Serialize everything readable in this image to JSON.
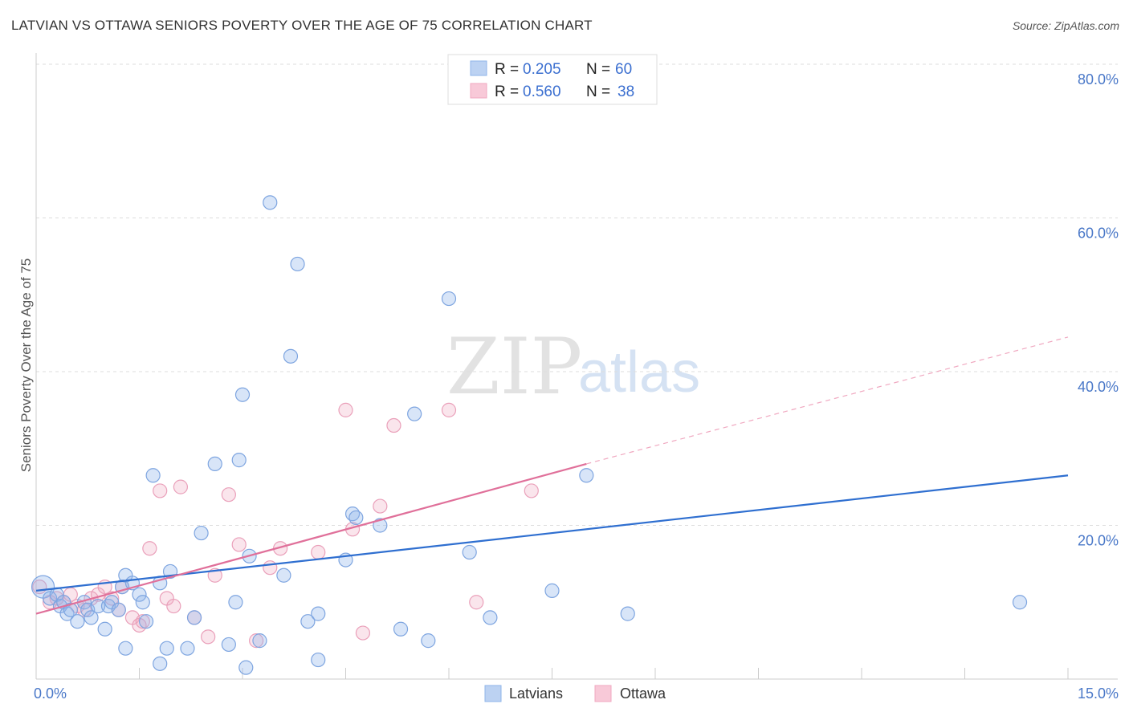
{
  "title": "LATVIAN VS OTTAWA SENIORS POVERTY OVER THE AGE OF 75 CORRELATION CHART",
  "source": "Source: ZipAtlas.com",
  "watermark": {
    "zip": "ZIP",
    "atlas": "atlas"
  },
  "colors": {
    "latvians": "#8fb4ea",
    "latvians_line": "#2f6fd0",
    "ottawa": "#f0a8c0",
    "ottawa_line": "#e0709a",
    "tick": "#4a78c8"
  },
  "legend": {
    "rows": [
      {
        "r_label": "R =",
        "r_value": "0.205",
        "n_label": "N =",
        "n_value": "60"
      },
      {
        "r_label": "R =",
        "r_value": "0.560",
        "n_label": "N =",
        "n_value": "38"
      }
    ]
  },
  "bottom_legend": [
    "Latvians",
    "Ottawa"
  ],
  "chart_data": {
    "type": "scatter",
    "title": "LATVIAN VS OTTAWA SENIORS POVERTY OVER THE AGE OF 75 CORRELATION CHART",
    "xlabel": "",
    "ylabel": "Seniors Poverty Over the Age of 75",
    "xlim": [
      0,
      15
    ],
    "ylim": [
      0,
      80
    ],
    "x_ticks": [
      "0.0%",
      "15.0%"
    ],
    "y_ticks": [
      {
        "value": 20,
        "label": "20.0%"
      },
      {
        "value": 40,
        "label": "40.0%"
      },
      {
        "value": 60,
        "label": "60.0%"
      },
      {
        "value": 80,
        "label": "80.0%"
      }
    ],
    "grid": true,
    "legend_position": "top-center",
    "series": [
      {
        "name": "Latvians",
        "r": 0.205,
        "n": 60,
        "trend": {
          "x0": 0,
          "y0": 11.5,
          "x1": 15,
          "y1": 26.5
        },
        "points": [
          [
            0.1,
            12
          ],
          [
            0.2,
            10.5
          ],
          [
            0.3,
            11
          ],
          [
            0.35,
            9.5
          ],
          [
            0.4,
            10
          ],
          [
            0.45,
            8.5
          ],
          [
            0.5,
            9
          ],
          [
            0.6,
            7.5
          ],
          [
            0.7,
            10
          ],
          [
            0.75,
            9
          ],
          [
            0.8,
            8
          ],
          [
            0.9,
            9.5
          ],
          [
            1.0,
            6.5
          ],
          [
            1.05,
            9.5
          ],
          [
            1.1,
            10
          ],
          [
            1.2,
            9
          ],
          [
            1.25,
            12
          ],
          [
            1.3,
            13.5
          ],
          [
            1.4,
            12.5
          ],
          [
            1.5,
            11
          ],
          [
            1.55,
            10
          ],
          [
            1.6,
            7.5
          ],
          [
            1.7,
            26.5
          ],
          [
            1.8,
            12.5
          ],
          [
            1.95,
            14
          ],
          [
            2.3,
            8
          ],
          [
            2.4,
            19
          ],
          [
            2.6,
            28
          ],
          [
            2.8,
            4.5
          ],
          [
            2.9,
            10
          ],
          [
            2.95,
            28.5
          ],
          [
            3.0,
            37
          ],
          [
            3.1,
            16
          ],
          [
            3.25,
            5
          ],
          [
            3.6,
            13.5
          ],
          [
            3.7,
            42
          ],
          [
            3.8,
            54
          ],
          [
            3.95,
            7.5
          ],
          [
            4.1,
            8.5
          ],
          [
            4.5,
            15.5
          ],
          [
            4.6,
            21.5
          ],
          [
            4.65,
            21
          ],
          [
            5.0,
            20
          ],
          [
            5.3,
            6.5
          ],
          [
            5.5,
            34.5
          ],
          [
            5.7,
            5
          ],
          [
            6.0,
            49.5
          ],
          [
            6.3,
            16.5
          ],
          [
            6.6,
            8
          ],
          [
            7.5,
            11.5
          ],
          [
            8.0,
            26.5
          ],
          [
            8.6,
            8.5
          ],
          [
            1.3,
            4
          ],
          [
            1.8,
            2
          ],
          [
            1.9,
            4
          ],
          [
            2.2,
            4
          ],
          [
            3.05,
            1.5
          ],
          [
            3.4,
            62
          ],
          [
            4.1,
            2.5
          ],
          [
            14.3,
            10
          ]
        ]
      },
      {
        "name": "Ottawa",
        "r": 0.56,
        "n": 38,
        "trend": {
          "x0": 0,
          "y0": 8.5,
          "x1": 8.0,
          "y1": 28
        },
        "trend_dashed": {
          "x0": 8.0,
          "y0": 28,
          "x1": 15,
          "y1": 44.5
        },
        "points": [
          [
            0.05,
            12
          ],
          [
            0.2,
            10
          ],
          [
            0.3,
            10.5
          ],
          [
            0.4,
            10
          ],
          [
            0.5,
            11
          ],
          [
            0.6,
            9.5
          ],
          [
            0.7,
            9
          ],
          [
            0.8,
            10.5
          ],
          [
            0.9,
            11
          ],
          [
            1.0,
            12
          ],
          [
            1.1,
            10.5
          ],
          [
            1.2,
            9
          ],
          [
            1.25,
            12
          ],
          [
            1.4,
            8
          ],
          [
            1.5,
            7
          ],
          [
            1.55,
            7.5
          ],
          [
            1.65,
            17
          ],
          [
            1.8,
            24.5
          ],
          [
            1.9,
            10.5
          ],
          [
            2.0,
            9.5
          ],
          [
            2.1,
            25
          ],
          [
            2.3,
            8
          ],
          [
            2.5,
            5.5
          ],
          [
            2.6,
            13.5
          ],
          [
            2.8,
            24
          ],
          [
            2.95,
            17.5
          ],
          [
            3.2,
            5
          ],
          [
            3.4,
            14.5
          ],
          [
            3.55,
            17
          ],
          [
            4.1,
            16.5
          ],
          [
            4.5,
            35
          ],
          [
            4.6,
            19.5
          ],
          [
            4.75,
            6
          ],
          [
            5.0,
            22.5
          ],
          [
            5.2,
            33
          ],
          [
            6.0,
            35
          ],
          [
            6.4,
            10
          ],
          [
            7.2,
            24.5
          ]
        ]
      }
    ]
  }
}
